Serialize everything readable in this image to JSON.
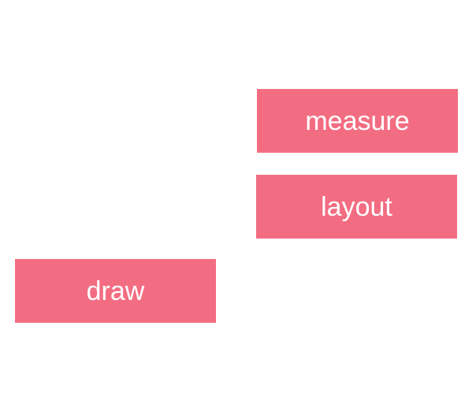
{
  "blocks": {
    "measure": {
      "label": "measure"
    },
    "layout": {
      "label": "layout"
    },
    "draw": {
      "label": "draw"
    }
  },
  "colors": {
    "background": "#ffffff",
    "block_fill": "#f36d82",
    "block_text": "#ffffff"
  }
}
